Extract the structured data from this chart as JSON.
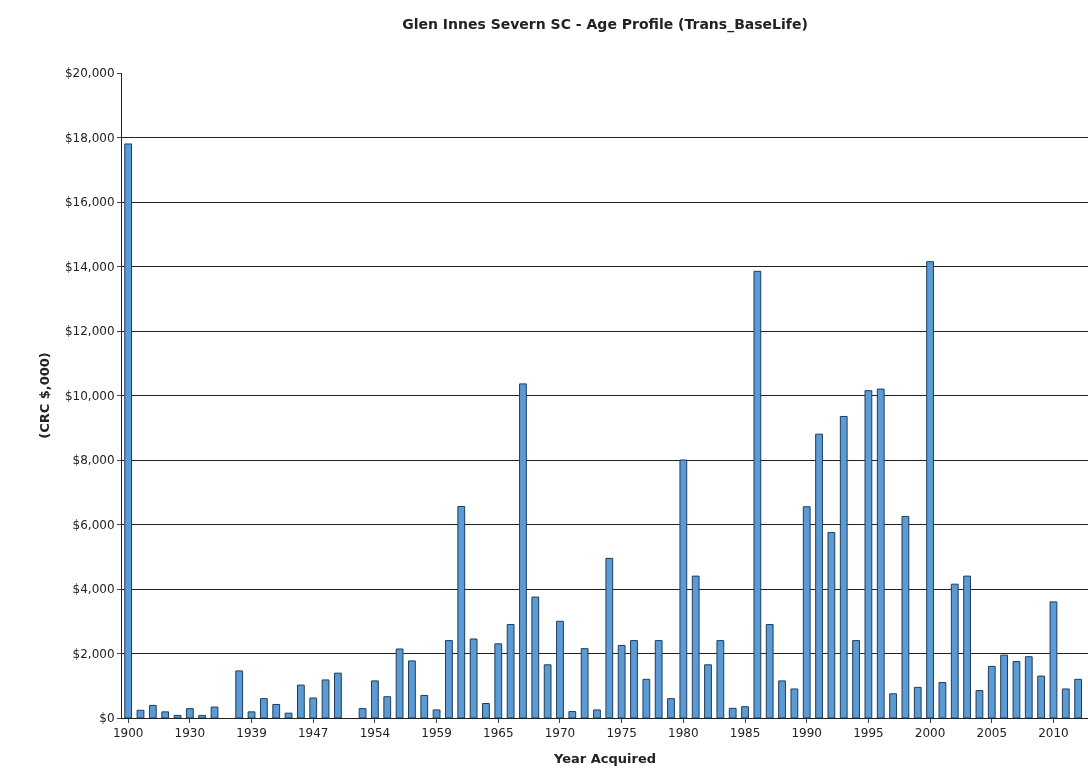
{
  "chart_data": {
    "type": "bar",
    "title": "Glen Innes Severn SC - Age Profile (Trans_BaseLife)",
    "xlabel": "Year Acquired",
    "ylabel": "(CRC $,000)",
    "categories": [
      "1900",
      null,
      null,
      null,
      null,
      "1930",
      null,
      null,
      null,
      null,
      "1939",
      null,
      null,
      null,
      null,
      "1947",
      null,
      null,
      null,
      null,
      "1954",
      null,
      null,
      null,
      null,
      "1959",
      null,
      null,
      null,
      null,
      "1965",
      null,
      null,
      null,
      null,
      "1970",
      null,
      null,
      null,
      null,
      "1975",
      null,
      null,
      null,
      null,
      "1980",
      null,
      null,
      null,
      null,
      "1985",
      null,
      null,
      null,
      null,
      "1990",
      null,
      null,
      null,
      null,
      "1995",
      null,
      null,
      null,
      null,
      "2000",
      null,
      null,
      null,
      null,
      "2005",
      null,
      null,
      null,
      null,
      "2010",
      null,
      null
    ],
    "values": [
      17800,
      240,
      390,
      190,
      80,
      290,
      80,
      340,
      null,
      1460,
      190,
      600,
      420,
      150,
      1020,
      620,
      1180,
      1390,
      null,
      290,
      1150,
      660,
      2140,
      1770,
      700,
      250,
      2400,
      6560,
      2450,
      450,
      2300,
      2900,
      10360,
      3750,
      1650,
      3000,
      200,
      2150,
      250,
      4950,
      2250,
      2400,
      1200,
      2400,
      600,
      8000,
      4400,
      1650,
      2400,
      300,
      350,
      13850,
      2900,
      1150,
      900,
      6550,
      8800,
      5750,
      9350,
      2400,
      10150,
      10200,
      750,
      6250,
      950,
      14150,
      1100,
      4150,
      4400,
      850,
      1600,
      1950,
      1750,
      1900,
      1300,
      3600,
      900,
      1200
    ],
    "color": "#5b9bd5",
    "ylim": [
      0,
      20000
    ],
    "yticks": [
      {
        "value": 0,
        "label": "$0"
      },
      {
        "value": 2000,
        "label": "$2,000"
      },
      {
        "value": 4000,
        "label": "$4,000"
      },
      {
        "value": 6000,
        "label": "$6,000"
      },
      {
        "value": 8000,
        "label": "$8,000"
      },
      {
        "value": 10000,
        "label": "$10,000"
      },
      {
        "value": 12000,
        "label": "$12,000"
      },
      {
        "value": 14000,
        "label": "$14,000"
      },
      {
        "value": 16000,
        "label": "$16,000"
      },
      {
        "value": 18000,
        "label": "$18,000"
      },
      {
        "value": 20000,
        "label": "$20,000"
      }
    ],
    "grid": "y"
  }
}
